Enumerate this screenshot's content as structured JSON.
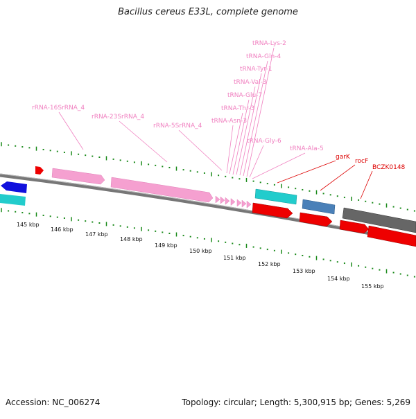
{
  "title": "Bacillus cereus E33L, complete genome",
  "footer": {
    "accession": "Accession: NC_006274",
    "info": "Topology: circular; Length: 5,300,915 bp; Genes: 5,269"
  },
  "colors": {
    "backbone": "#808080",
    "tick": "#1a8a1a",
    "rna_label": "#f080c0",
    "gene_label": "#dd0000",
    "pink": "#f5a0d0",
    "red": "#ee0000",
    "cyan": "#22cccc",
    "blue": "#1010dd",
    "steel": "#4a80b8",
    "gray": "#666666"
  },
  "kbp_labels": [
    "145 kbp",
    "146 kbp",
    "147 kbp",
    "148 kbp",
    "149 kbp",
    "150 kbp",
    "151 kbp",
    "152 kbp",
    "153 kbp",
    "154 kbp",
    "155 kbp"
  ],
  "rna_labels": [
    "rRNA-16SrRNA_4",
    "rRNA-23SrRNA_4",
    "rRNA-5SrRNA_4",
    "tRNA-Asn-3",
    "tRNA-Thr-3",
    "tRNA-Glu-7",
    "tRNA-Val-3",
    "tRNA-Tyr-1",
    "tRNA-Gln-4",
    "tRNA-Lys-2",
    "tRNA-Gly-6",
    "tRNA-Ala-5"
  ],
  "gene_labels": [
    "garK",
    "rocF",
    "BCZK0148"
  ]
}
